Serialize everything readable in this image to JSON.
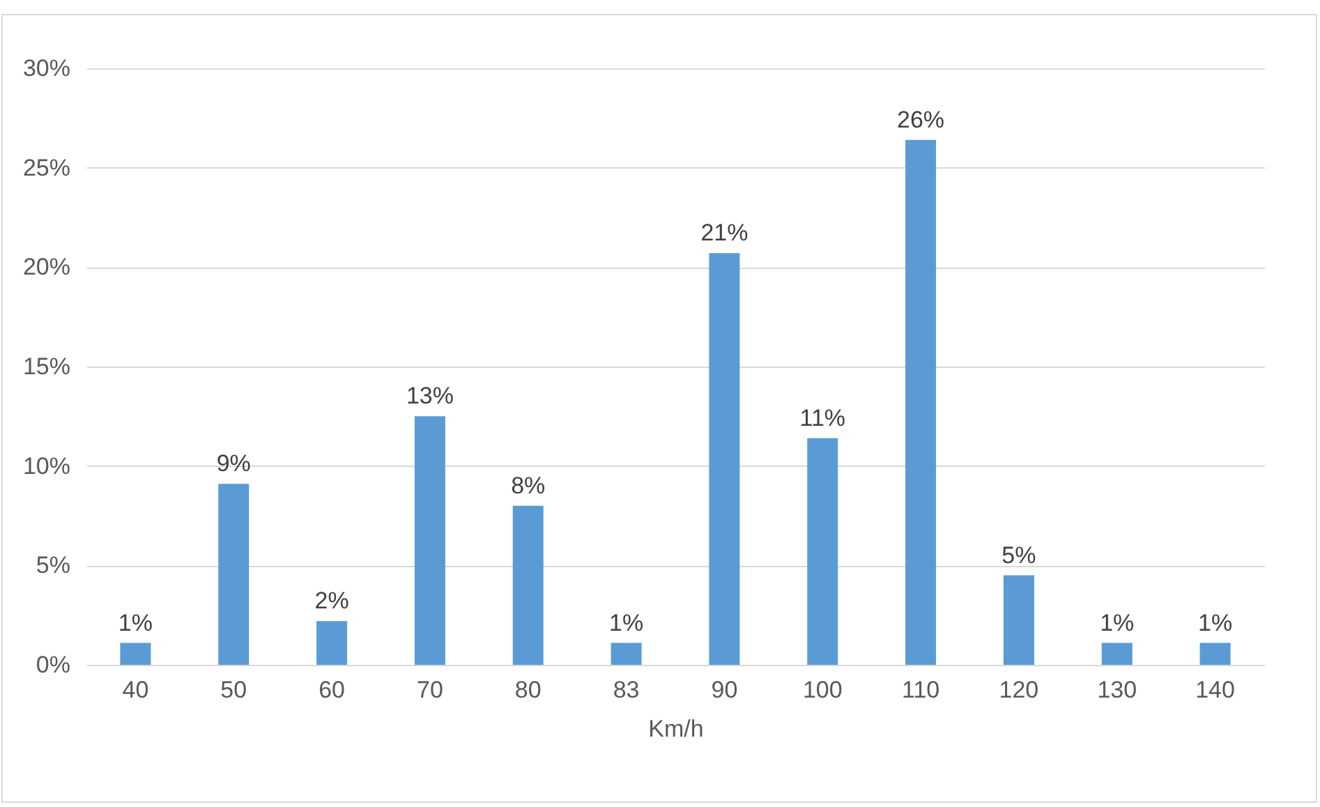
{
  "chart_data": {
    "type": "bar",
    "xlabel": "Km/h",
    "categories": [
      "40",
      "50",
      "60",
      "70",
      "80",
      "83",
      "90",
      "100",
      "110",
      "120",
      "130",
      "140"
    ],
    "values": [
      1.1,
      9.1,
      2.2,
      12.5,
      8.0,
      1.1,
      20.7,
      11.4,
      26.4,
      4.5,
      1.1,
      1.1
    ],
    "value_labels": [
      "1%",
      "9%",
      "2%",
      "13%",
      "8%",
      "1%",
      "21%",
      "11%",
      "26%",
      "5%",
      "1%",
      "1%"
    ],
    "color": "#5b9bd5",
    "ylim": [
      0,
      30
    ],
    "yticks": [
      {
        "value": 0,
        "label": "0%"
      },
      {
        "value": 5,
        "label": "5%"
      },
      {
        "value": 10,
        "label": "10%"
      },
      {
        "value": 15,
        "label": "15%"
      },
      {
        "value": 20,
        "label": "20%"
      },
      {
        "value": 25,
        "label": "25%"
      },
      {
        "value": 30,
        "label": "30%"
      }
    ],
    "grid": "y"
  }
}
